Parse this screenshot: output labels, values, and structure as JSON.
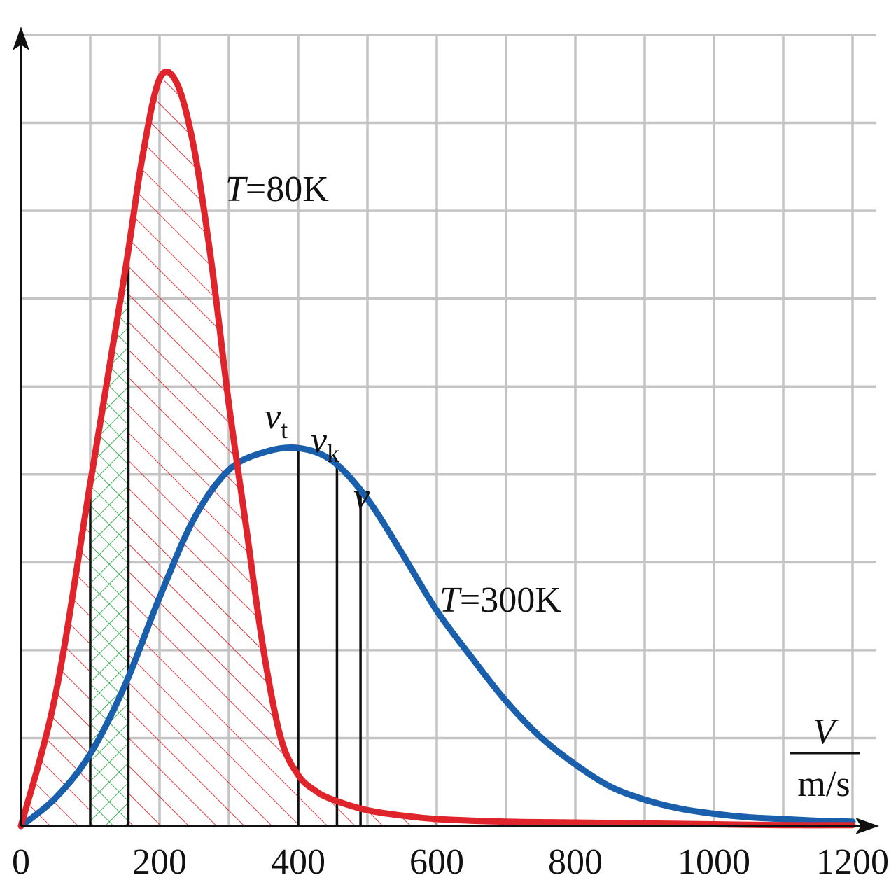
{
  "chart_data": {
    "type": "line",
    "title": "",
    "xlabel_numerator": "V",
    "xlabel_denominator": "m/s",
    "ylabel": "",
    "xlim": [
      0,
      1200
    ],
    "ylim": [
      0,
      9
    ],
    "x_ticks": [
      0,
      200,
      400,
      600,
      800,
      1000,
      1200
    ],
    "x_tick_labels": [
      "0",
      "200",
      "400",
      "600",
      "800",
      "1000",
      "1200"
    ],
    "grid": true,
    "colors": {
      "t80": "#e0242b",
      "t300": "#1a5fab",
      "grid": "#c4c4c4",
      "hatch_red": "#e0242b",
      "hatch_green": "#2eaa4a",
      "axis": "#111111"
    },
    "series": [
      {
        "name": "T=80K",
        "label_T": "T",
        "label_rest": "=80K",
        "color": "#e0242b",
        "x": [
          0,
          50,
          100,
          150,
          175,
          200,
          225,
          250,
          275,
          300,
          325,
          350,
          375,
          400,
          425,
          450,
          500,
          550,
          600,
          700,
          800,
          900,
          1000,
          1100,
          1200
        ],
        "y": [
          0,
          1.5,
          3.9,
          6.3,
          7.6,
          8.5,
          8.45,
          7.7,
          6.4,
          4.8,
          3.4,
          2.0,
          1.0,
          0.58,
          0.4,
          0.3,
          0.18,
          0.12,
          0.08,
          0.05,
          0.04,
          0.03,
          0.02,
          0.01,
          0.01
        ]
      },
      {
        "name": "T=300K",
        "label_T": "T",
        "label_rest": "=300K",
        "color": "#1a5fab",
        "x": [
          0,
          50,
          100,
          150,
          200,
          250,
          300,
          350,
          400,
          450,
          500,
          550,
          600,
          650,
          700,
          750,
          800,
          850,
          900,
          950,
          1000,
          1050,
          1100,
          1150,
          1200
        ],
        "y": [
          0,
          0.32,
          0.82,
          1.6,
          2.6,
          3.5,
          4.05,
          4.25,
          4.3,
          4.15,
          3.72,
          3.1,
          2.45,
          1.92,
          1.42,
          1.01,
          0.7,
          0.45,
          0.3,
          0.2,
          0.14,
          0.1,
          0.08,
          0.06,
          0.05
        ]
      }
    ],
    "markers": [
      {
        "name": "v_t",
        "symbol": "v",
        "subscript": "t",
        "x": 400,
        "series": "T=300K"
      },
      {
        "name": "v_k",
        "symbol": "v",
        "subscript": "k",
        "x": 456,
        "series": "T=300K"
      },
      {
        "name": "v",
        "symbol": "v",
        "subscript": "",
        "x": 490,
        "series": "T=300K"
      }
    ],
    "shaded_regions": [
      {
        "name": "red-hatched-area",
        "from": 0,
        "to": 600,
        "under": "T=80K",
        "pattern": "diagonal"
      },
      {
        "name": "green-crosshatch-area",
        "from": 100,
        "to": 155,
        "under": "T=80K",
        "pattern": "cross"
      }
    ],
    "band_lines": [
      100,
      155
    ]
  }
}
